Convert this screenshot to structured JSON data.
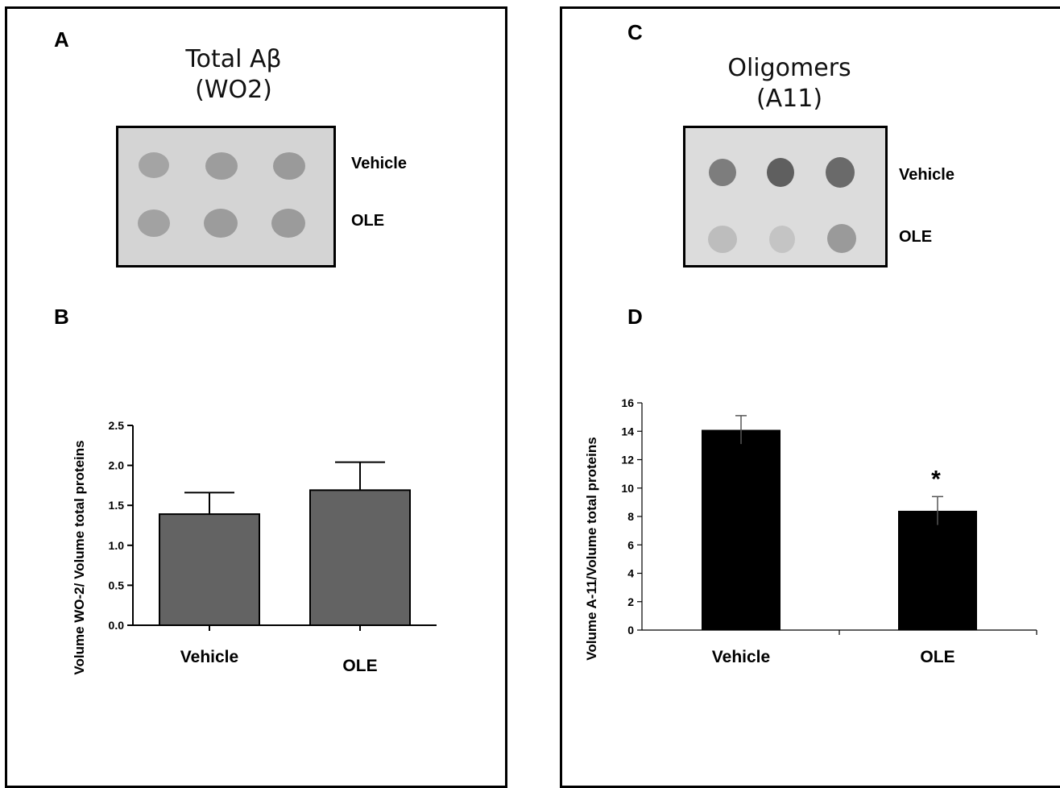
{
  "panels": {
    "a": {
      "letter": "A",
      "title_line1": "Total Aβ",
      "title_line2": "(WO2)",
      "row1_label": "Vehicle",
      "row2_label": "OLE"
    },
    "b": {
      "letter": "B"
    },
    "c": {
      "letter": "C",
      "title_line1": "Oligomers",
      "title_line2": "(A11)",
      "row1_label": "Vehicle",
      "row2_label": "OLE"
    },
    "d": {
      "letter": "D"
    }
  },
  "chart_data": [
    {
      "id": "B",
      "type": "bar",
      "categories": [
        "Vehicle",
        "OLE"
      ],
      "values": [
        1.39,
        1.69
      ],
      "errors": [
        0.27,
        0.35
      ],
      "ylabel": "Volume WO-2/ Volume total proteins",
      "ylim": [
        0,
        2.5
      ],
      "yticks": [
        "0.0",
        "0.5",
        "1.0",
        "1.5",
        "2.0",
        "2.5"
      ],
      "bar_color": "#636363",
      "grid": false
    },
    {
      "id": "D",
      "type": "bar",
      "categories": [
        "Vehicle",
        "OLE"
      ],
      "values": [
        14.1,
        8.4
      ],
      "errors": [
        1.0,
        1.0
      ],
      "ylabel": "Volume A-11/Volume total proteins",
      "ylim": [
        0,
        16
      ],
      "yticks": [
        "0",
        "2",
        "4",
        "6",
        "8",
        "10",
        "12",
        "14",
        "16"
      ],
      "annotation": "*",
      "bar_color": "#000000",
      "grid": false
    }
  ]
}
